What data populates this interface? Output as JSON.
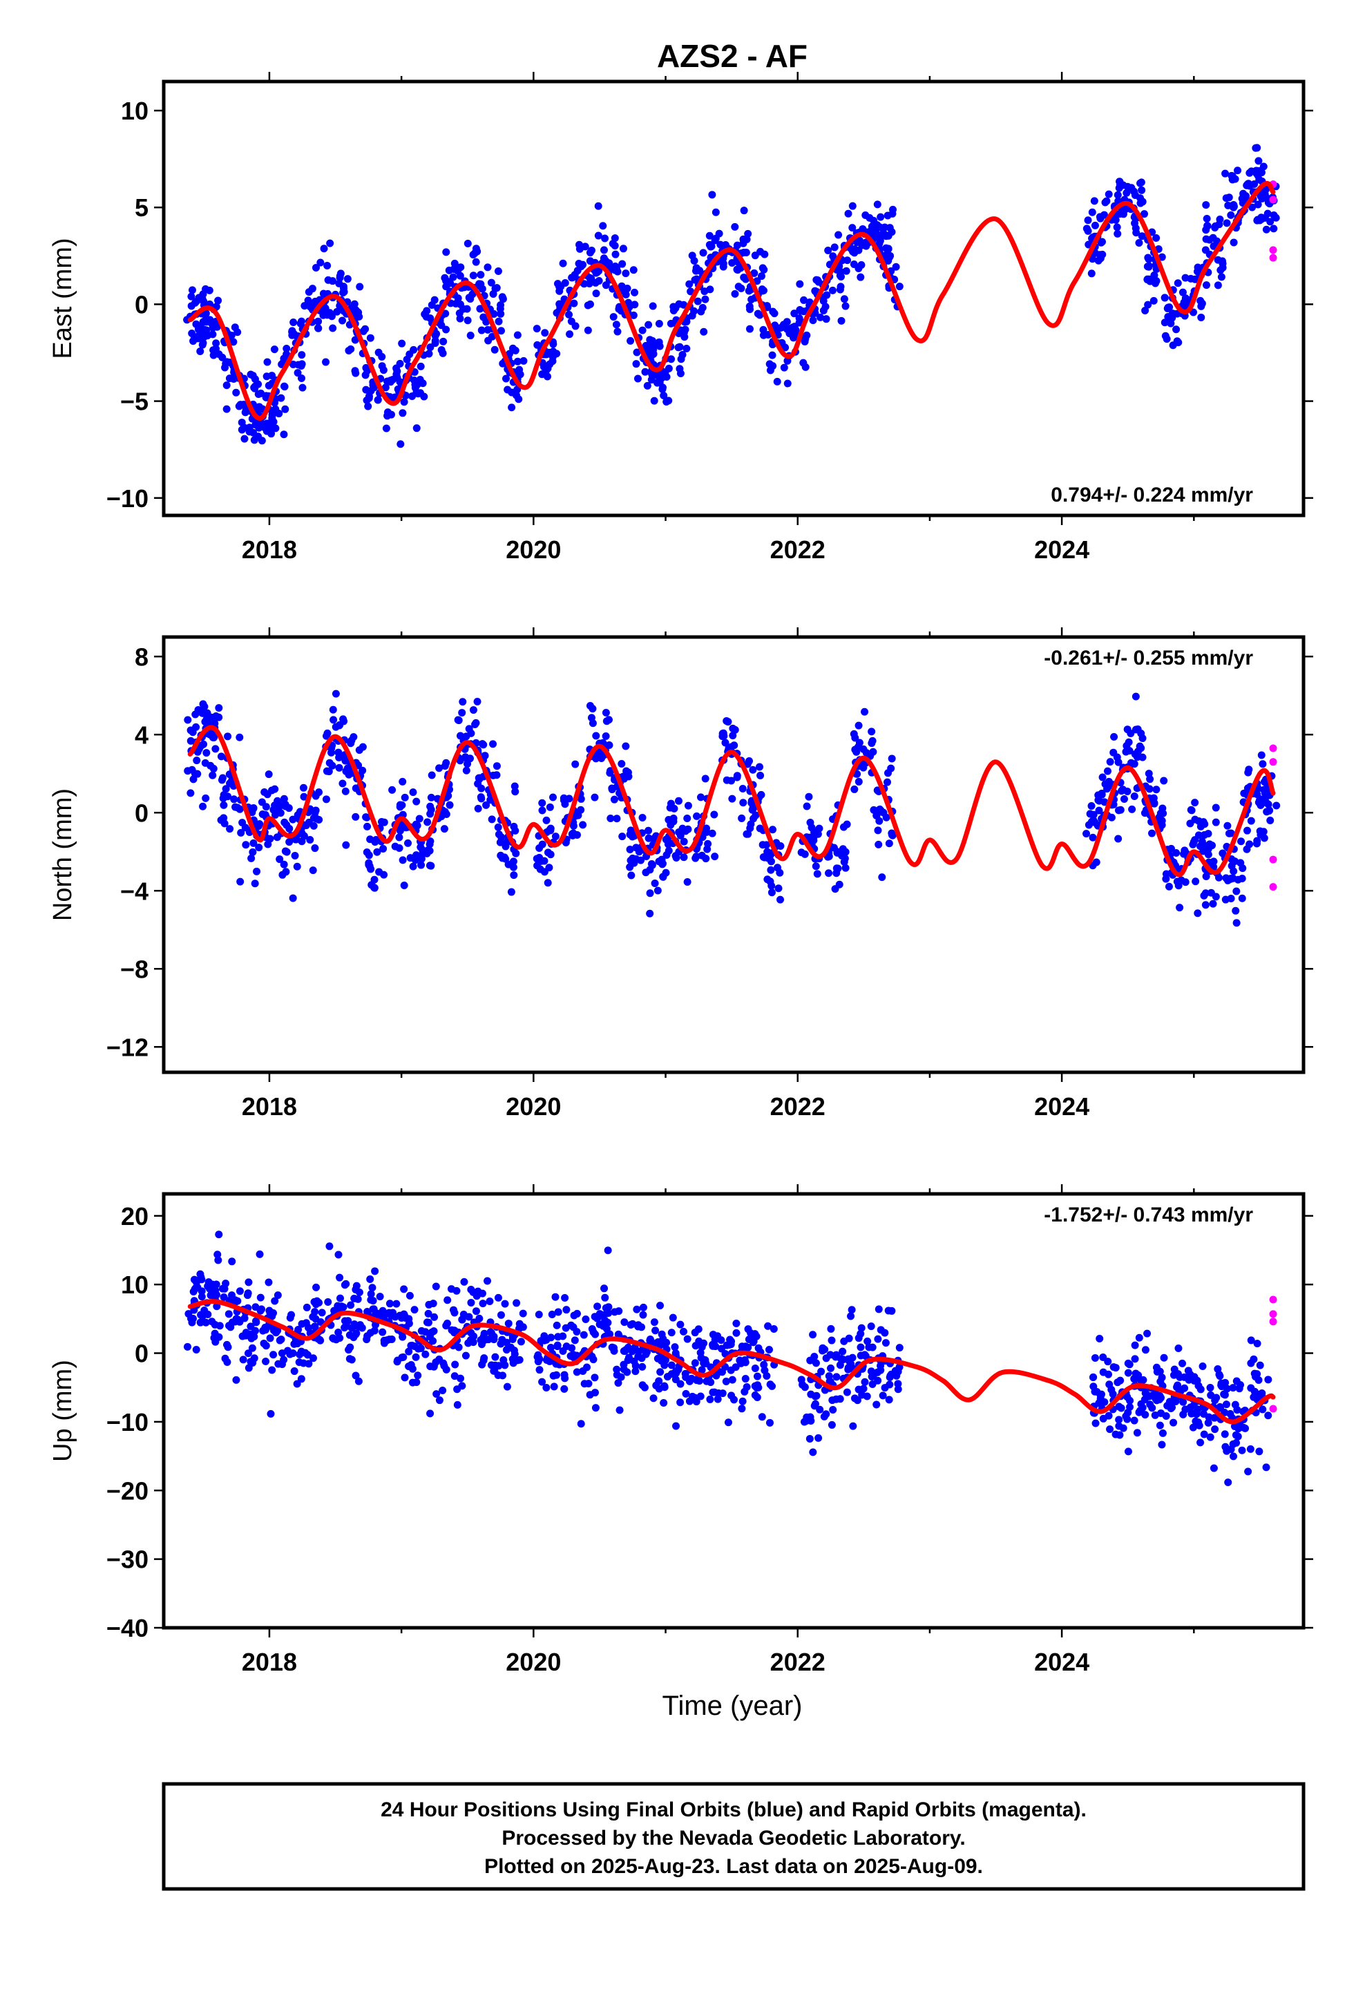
{
  "title": "AZS2 - AF",
  "x_axis_label": "Time (year)",
  "footer_lines": [
    "24 Hour Positions Using Final Orbits (blue) and Rapid Orbits (magenta).",
    "Processed by the Nevada Geodetic Laboratory.",
    "Plotted on 2025-Aug-23. Last data on 2025-Aug-09."
  ],
  "colors": {
    "final_orbits": "#0000ff",
    "rapid_orbits": "#ff00ff",
    "model": "#ff0000",
    "frame": "#000000"
  },
  "chart_data": [
    {
      "type": "scatter",
      "ylabel": "East (mm)",
      "rate_annotation": "0.794+/- 0.224 mm/yr",
      "xlim": [
        2017.2,
        2025.83
      ],
      "ylim": [
        -10.9,
        11.5
      ],
      "xticks": [
        2018,
        2020,
        2022,
        2024
      ],
      "xtick_labels": [
        "2018",
        "2020",
        "2022",
        "2024"
      ],
      "yticks": [
        10,
        5,
        0,
        -5,
        -10
      ],
      "ytick_labels": [
        "10",
        "5",
        "0",
        "−5",
        "−10"
      ],
      "series": [
        {
          "name": "Final Orbits (blue)",
          "color": "#0000ff",
          "x": [
            2017.45,
            2017.55,
            2017.7,
            2017.85,
            2017.95,
            2018.05,
            2018.2,
            2018.35,
            2018.5,
            2018.65,
            2018.8,
            2018.95,
            2019.1,
            2019.25,
            2019.4,
            2019.55,
            2019.7,
            2019.85,
            2020.1,
            2020.25,
            2020.4,
            2020.55,
            2020.7,
            2020.85,
            2020.95,
            2021.1,
            2021.25,
            2021.4,
            2021.55,
            2021.7,
            2021.85,
            2022.0,
            2022.15,
            2022.3,
            2022.45,
            2022.6,
            2022.7,
            2024.25,
            2024.4,
            2024.55,
            2024.7,
            2024.85,
            2025.0,
            2025.15,
            2025.3,
            2025.45,
            2025.55
          ],
          "y": [
            -0.5,
            -0.8,
            -3.0,
            -5.5,
            -5.8,
            -4.5,
            -2.0,
            0.0,
            0.5,
            -1.0,
            -4.0,
            -4.8,
            -3.5,
            -1.5,
            0.5,
            0.8,
            -0.5,
            -3.5,
            -2.5,
            0.0,
            1.5,
            2.0,
            0.5,
            -2.5,
            -3.5,
            -1.5,
            1.0,
            2.5,
            2.5,
            0.5,
            -2.0,
            -1.5,
            0.5,
            2.0,
            3.2,
            3.5,
            2.5,
            3.5,
            5.0,
            4.5,
            1.5,
            -0.5,
            0.5,
            3.0,
            5.0,
            5.8,
            5.5
          ]
        },
        {
          "name": "Rapid Orbits (magenta)",
          "color": "#ff00ff",
          "x": [
            2025.6,
            2025.6,
            2025.6,
            2025.6
          ],
          "y": [
            6.2,
            5.4,
            2.8,
            2.4
          ]
        },
        {
          "name": "Model",
          "color": "#ff0000",
          "x": [
            2017.4,
            2017.6,
            2017.9,
            2018.1,
            2018.5,
            2018.9,
            2019.1,
            2019.5,
            2019.9,
            2020.1,
            2020.5,
            2020.9,
            2021.1,
            2021.5,
            2021.9,
            2022.1,
            2022.5,
            2022.9,
            2023.1,
            2023.5,
            2023.9,
            2024.1,
            2024.5,
            2024.9,
            2025.1,
            2025.5,
            2025.6
          ],
          "y": [
            -0.8,
            -0.5,
            -5.8,
            -3.5,
            0.4,
            -5.0,
            -3.0,
            1.1,
            -4.2,
            -2.0,
            2.0,
            -3.3,
            -1.0,
            2.8,
            -2.6,
            -0.3,
            3.6,
            -1.8,
            0.5,
            4.4,
            -1.0,
            1.2,
            5.2,
            -0.3,
            2.0,
            6.0,
            5.8
          ]
        }
      ]
    },
    {
      "type": "scatter",
      "ylabel": "North (mm)",
      "rate_annotation": "-0.261+/- 0.255 mm/yr",
      "xlim": [
        2017.2,
        2025.83
      ],
      "ylim": [
        -13.3,
        9.0
      ],
      "xticks": [
        2018,
        2020,
        2022,
        2024
      ],
      "xtick_labels": [
        "2018",
        "2020",
        "2022",
        "2024"
      ],
      "yticks": [
        8,
        4,
        0,
        -4,
        -8,
        -12
      ],
      "ytick_labels": [
        "8",
        "4",
        "0",
        "−4",
        "−8",
        "−12"
      ],
      "series": [
        {
          "name": "Final Orbits (blue)",
          "color": "#0000ff",
          "x": [
            2017.45,
            2017.55,
            2017.7,
            2017.85,
            2018.0,
            2018.15,
            2018.3,
            2018.5,
            2018.65,
            2018.8,
            2019.0,
            2019.15,
            2019.3,
            2019.5,
            2019.65,
            2019.8,
            2020.1,
            2020.3,
            2020.5,
            2020.65,
            2020.8,
            2020.95,
            2021.1,
            2021.3,
            2021.5,
            2021.65,
            2021.8,
            2022.1,
            2022.3,
            2022.5,
            2022.65,
            2024.25,
            2024.4,
            2024.55,
            2024.7,
            2024.85,
            2025.0,
            2025.15,
            2025.3,
            2025.45,
            2025.55
          ],
          "y": [
            3.2,
            4.0,
            1.5,
            -1.0,
            -0.5,
            -1.5,
            -0.5,
            3.8,
            2.0,
            -1.5,
            -0.5,
            -1.5,
            0.5,
            3.5,
            2.0,
            -1.5,
            -1.0,
            -0.5,
            3.5,
            1.0,
            -2.0,
            -2.5,
            -1.0,
            -1.0,
            3.0,
            0.5,
            -2.5,
            -1.5,
            -2.0,
            2.5,
            0.0,
            -0.5,
            1.0,
            2.5,
            0.5,
            -3.0,
            -1.5,
            -2.5,
            -3.0,
            1.0,
            0.5
          ]
        },
        {
          "name": "Rapid Orbits (magenta)",
          "color": "#ff00ff",
          "x": [
            2025.6,
            2025.6,
            2025.6,
            2025.6
          ],
          "y": [
            3.3,
            2.6,
            -2.4,
            -3.8
          ]
        },
        {
          "name": "Model",
          "color": "#ff0000",
          "x": [
            2017.4,
            2017.6,
            2017.9,
            2018.0,
            2018.2,
            2018.5,
            2018.85,
            2019.0,
            2019.2,
            2019.5,
            2019.85,
            2020.0,
            2020.2,
            2020.5,
            2020.85,
            2021.0,
            2021.2,
            2021.5,
            2021.85,
            2022.0,
            2022.2,
            2022.5,
            2022.85,
            2023.0,
            2023.2,
            2023.5,
            2023.85,
            2024.0,
            2024.2,
            2024.5,
            2024.85,
            2025.0,
            2025.2,
            2025.5,
            2025.6
          ],
          "y": [
            3.0,
            4.2,
            -1.2,
            -0.3,
            -1.0,
            3.9,
            -1.3,
            -0.3,
            -1.2,
            3.6,
            -1.6,
            -0.6,
            -1.5,
            3.4,
            -1.9,
            -0.9,
            -1.8,
            3.1,
            -2.2,
            -1.1,
            -2.1,
            2.8,
            -2.5,
            -1.4,
            -2.4,
            2.6,
            -2.7,
            -1.6,
            -2.6,
            2.3,
            -3.0,
            -2.0,
            -2.9,
            2.0,
            1.0
          ]
        }
      ]
    },
    {
      "type": "scatter",
      "ylabel": "Up (mm)",
      "rate_annotation": "-1.752+/- 0.743 mm/yr",
      "xlim": [
        2017.2,
        2025.83
      ],
      "ylim": [
        -40.0,
        23.2
      ],
      "xticks": [
        2018,
        2020,
        2022,
        2024
      ],
      "xtick_labels": [
        "2018",
        "2020",
        "2022",
        "2024"
      ],
      "yticks": [
        20,
        10,
        0,
        -10,
        -20,
        -30,
        -40
      ],
      "ytick_labels": [
        "20",
        "10",
        "0",
        "−10",
        "−20",
        "−30",
        "−40"
      ],
      "series": [
        {
          "name": "Final Orbits (blue)",
          "color": "#0000ff",
          "x": [
            2017.45,
            2017.6,
            2017.75,
            2017.9,
            2018.05,
            2018.2,
            2018.35,
            2018.5,
            2018.65,
            2018.8,
            2018.95,
            2019.1,
            2019.25,
            2019.4,
            2019.55,
            2019.7,
            2019.85,
            2020.1,
            2020.25,
            2020.4,
            2020.55,
            2020.7,
            2020.85,
            2021.0,
            2021.15,
            2021.3,
            2021.45,
            2021.6,
            2021.75,
            2022.1,
            2022.25,
            2022.4,
            2022.55,
            2022.7,
            2024.3,
            2024.45,
            2024.6,
            2024.75,
            2024.9,
            2025.05,
            2025.2,
            2025.35,
            2025.5
          ],
          "y": [
            7.0,
            8.5,
            5.0,
            4.5,
            3.0,
            2.0,
            5.0,
            6.0,
            4.0,
            5.5,
            4.0,
            1.0,
            0.5,
            3.0,
            4.5,
            2.0,
            2.5,
            -1.0,
            1.0,
            -0.5,
            2.5,
            0.5,
            1.0,
            -1.0,
            -3.0,
            -1.0,
            -2.0,
            -1.0,
            -2.5,
            -6.0,
            -4.5,
            -2.0,
            -1.0,
            -1.5,
            -6.0,
            -8.0,
            -5.0,
            -6.5,
            -5.5,
            -7.0,
            -8.0,
            -10.0,
            -6.0
          ]
        },
        {
          "name": "Rapid Orbits (magenta)",
          "color": "#ff00ff",
          "x": [
            2025.6,
            2025.6,
            2025.6,
            2025.6
          ],
          "y": [
            7.8,
            5.7,
            4.6,
            -8.1
          ]
        },
        {
          "name": "Model",
          "color": "#ff0000",
          "x": [
            2017.4,
            2017.6,
            2017.9,
            2018.1,
            2018.3,
            2018.55,
            2018.9,
            2019.1,
            2019.3,
            2019.55,
            2019.9,
            2020.1,
            2020.3,
            2020.55,
            2020.9,
            2021.1,
            2021.3,
            2021.55,
            2021.9,
            2022.1,
            2022.3,
            2022.55,
            2022.9,
            2023.1,
            2023.3,
            2023.55,
            2023.9,
            2024.1,
            2024.3,
            2024.55,
            2024.9,
            2025.1,
            2025.3,
            2025.55,
            2025.6
          ],
          "y": [
            6.8,
            7.5,
            5.5,
            3.8,
            2.2,
            5.8,
            4.2,
            2.5,
            0.5,
            4.0,
            2.8,
            0.0,
            -1.5,
            2.0,
            0.8,
            -1.2,
            -3.2,
            0.0,
            -1.5,
            -3.2,
            -5.0,
            -1.0,
            -2.0,
            -4.0,
            -6.8,
            -2.8,
            -4.0,
            -6.0,
            -8.5,
            -4.8,
            -6.2,
            -7.5,
            -10.0,
            -6.5,
            -6.4
          ]
        }
      ]
    }
  ]
}
